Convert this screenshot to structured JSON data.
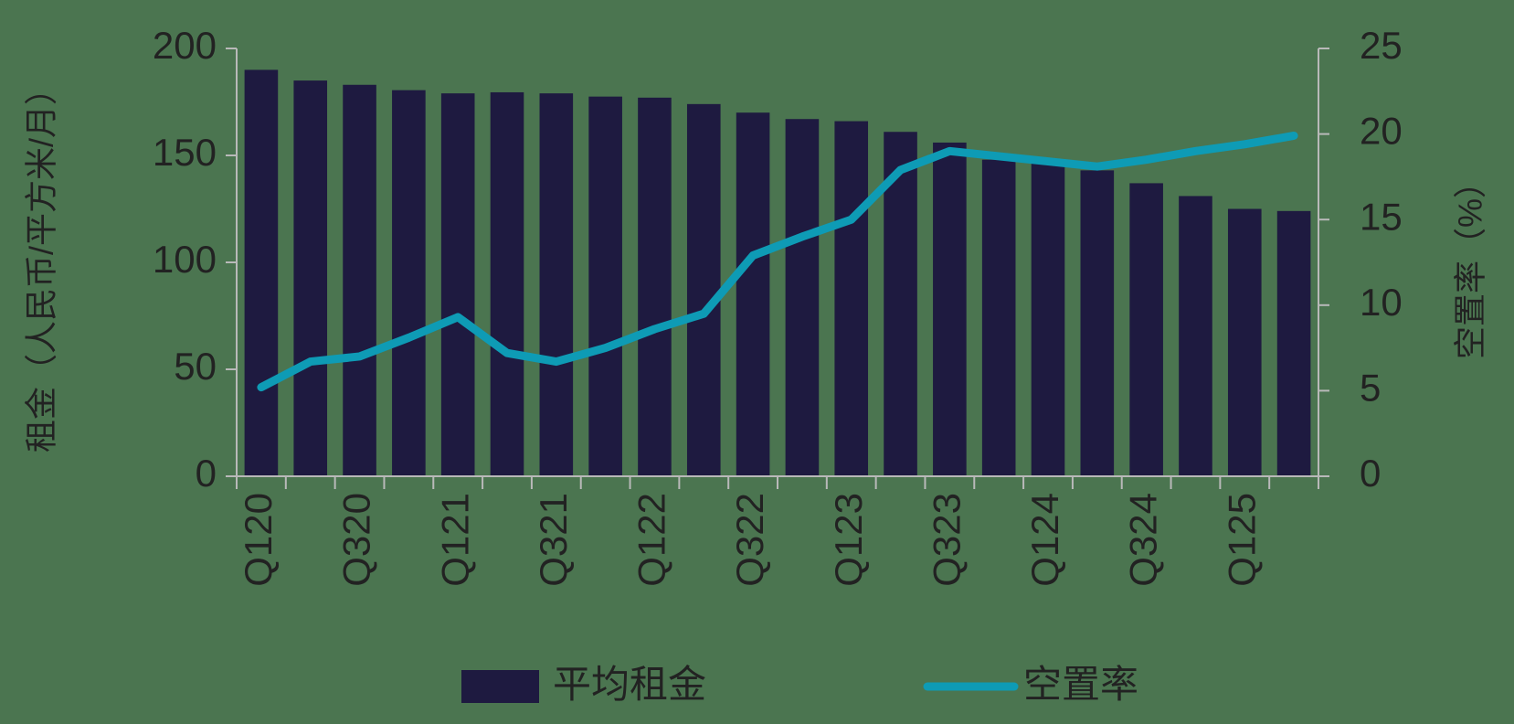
{
  "chart_data": {
    "type": "bar",
    "categories": [
      "Q120",
      null,
      "Q320",
      null,
      "Q121",
      null,
      "Q321",
      null,
      "Q122",
      null,
      "Q322",
      null,
      "Q123",
      null,
      "Q323",
      null,
      "Q124",
      null,
      "Q324",
      null,
      "Q125",
      null
    ],
    "series": [
      {
        "name": "平均租金",
        "type": "bar",
        "color": "#1e1a40",
        "values": [
          190,
          185,
          183,
          180.5,
          179,
          179.5,
          179,
          177.5,
          177,
          174,
          170,
          167,
          166,
          161,
          156,
          148,
          147,
          143,
          137,
          131,
          125,
          124
        ]
      },
      {
        "name": "空置率",
        "type": "line",
        "axis": "y2",
        "color": "#0e9bb5",
        "values": [
          5.2,
          6.7,
          7.0,
          8.1,
          9.3,
          7.2,
          6.7,
          7.5,
          8.6,
          9.5,
          12.9,
          14.0,
          15.0,
          17.9,
          19.0,
          18.7,
          18.4,
          18.1,
          18.5,
          19.0,
          19.4,
          19.9
        ]
      }
    ],
    "ylabel": "租金（人民币/平方米/月）",
    "y2label": "空置率（%）",
    "ylim": [
      0,
      200
    ],
    "yticks": [
      0,
      50,
      100,
      150,
      200
    ],
    "y2lim": [
      0,
      25
    ],
    "y2ticks": [
      0,
      5,
      10,
      15,
      20,
      25
    ],
    "legend": "bottom"
  }
}
